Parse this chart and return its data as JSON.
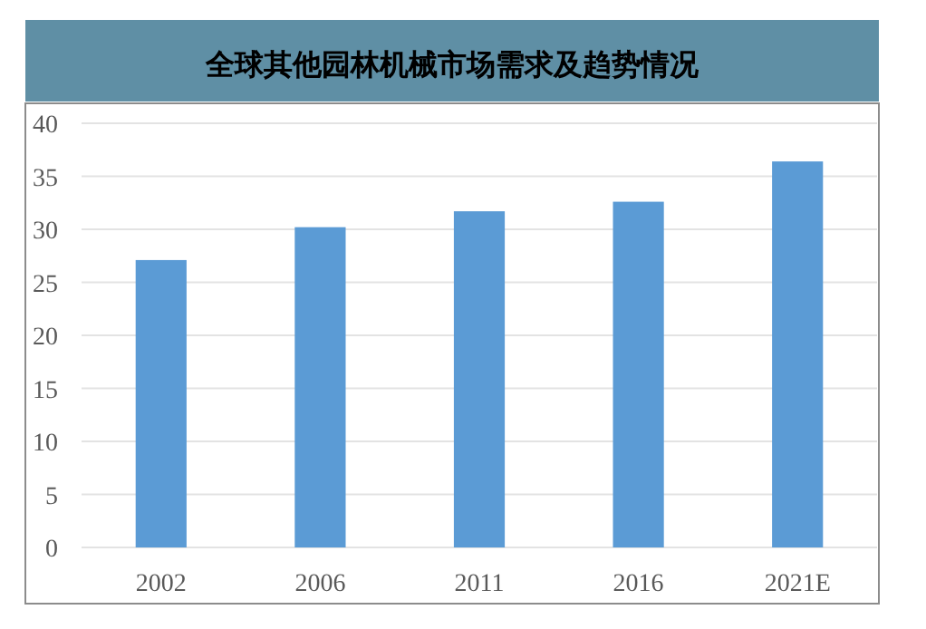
{
  "chart_data": {
    "type": "bar",
    "title": "全球其他园林机械市场需求及趋势情况",
    "categories": [
      "2002",
      "2006",
      "2011",
      "2016",
      "2021E"
    ],
    "values": [
      27.1,
      30.2,
      31.7,
      32.6,
      36.4
    ],
    "color": "#5b9bd5",
    "ylim": [
      0,
      40
    ],
    "yticks": [
      0,
      5,
      10,
      15,
      20,
      25,
      30,
      35,
      40
    ],
    "grid": "y"
  }
}
